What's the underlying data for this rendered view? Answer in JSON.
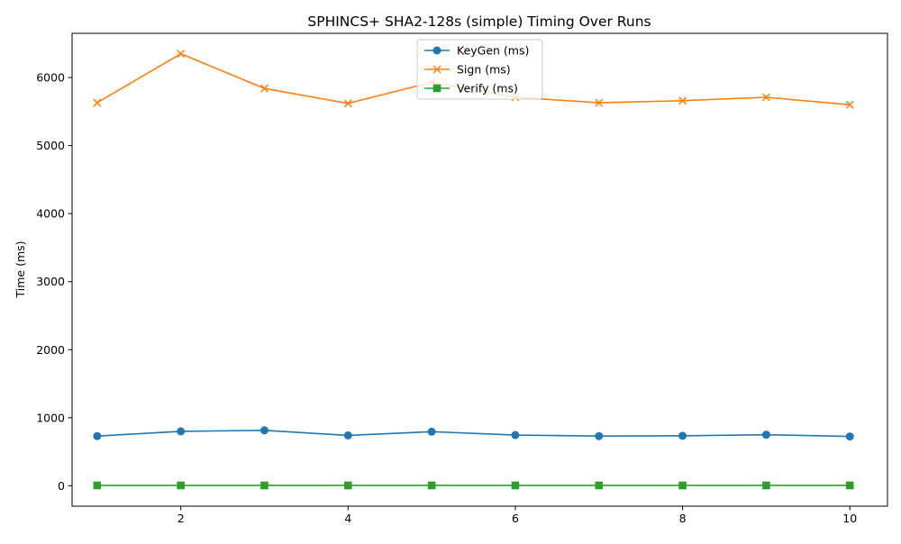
{
  "chart_data": {
    "type": "line",
    "title": "SPHINCS+ SHA2-128s (simple) Timing Over Runs",
    "xlabel": "",
    "ylabel": "Time (ms)",
    "xlim": [
      0.7,
      10.45
    ],
    "ylim": [
      -300,
      6650
    ],
    "x": [
      1,
      2,
      3,
      4,
      5,
      6,
      7,
      8,
      9,
      10
    ],
    "xticks": [
      2,
      4,
      6,
      8,
      10
    ],
    "yticks": [
      0,
      1000,
      2000,
      3000,
      4000,
      5000,
      6000
    ],
    "grid": false,
    "legend_position": "top-center",
    "series": [
      {
        "name": "KeyGen (ms)",
        "color": "#1f77b4",
        "marker": "circle",
        "values": [
          730,
          800,
          815,
          740,
          795,
          745,
          730,
          735,
          750,
          725
        ]
      },
      {
        "name": "Sign (ms)",
        "color": "#ff7f0e",
        "marker": "x",
        "values": [
          5630,
          6350,
          5840,
          5620,
          5930,
          5710,
          5630,
          5660,
          5710,
          5600
        ]
      },
      {
        "name": "Verify (ms)",
        "color": "#2ca02c",
        "marker": "square",
        "values": [
          5,
          5,
          5,
          5,
          5,
          5,
          5,
          5,
          5,
          5
        ]
      }
    ]
  }
}
